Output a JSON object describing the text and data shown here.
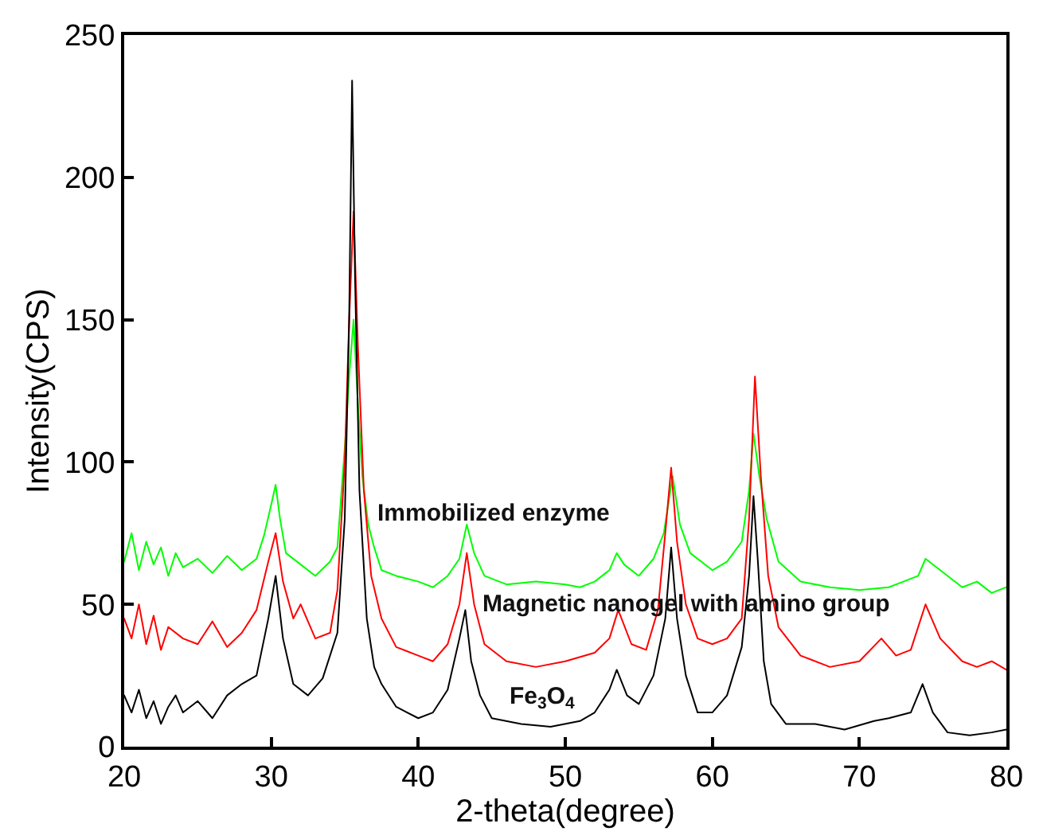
{
  "chart_data": {
    "type": "line",
    "xlabel": "2-theta(degree)",
    "ylabel": "Intensity(CPS)",
    "xlim": [
      20,
      80
    ],
    "ylim": [
      0,
      250
    ],
    "xticks": [
      20,
      30,
      40,
      50,
      60,
      70,
      80
    ],
    "yticks": [
      0,
      50,
      100,
      150,
      200,
      250
    ],
    "grid": false,
    "legend": false,
    "marker": "none",
    "line_style": "solid",
    "series": [
      {
        "name": "Immobilized enzyme",
        "color": "#00ff00",
        "x": [
          20,
          20.5,
          21,
          21.5,
          22,
          22.5,
          23,
          23.5,
          24,
          25,
          26,
          27,
          28,
          29,
          29.5,
          30,
          30.3,
          30.6,
          31,
          32,
          33,
          34,
          34.5,
          35,
          35.3,
          35.6,
          35.9,
          36.2,
          36.6,
          37,
          37.5,
          38.5,
          40,
          41,
          42,
          42.8,
          43.3,
          43.8,
          44.5,
          46,
          48,
          50,
          51,
          52,
          53,
          53.5,
          54,
          55,
          56,
          56.7,
          57.3,
          57.8,
          58.5,
          60,
          61,
          62,
          62.5,
          62.8,
          63.2,
          63.7,
          64.5,
          66,
          68,
          70,
          72,
          73,
          74,
          74.5,
          75.5,
          77,
          78,
          79,
          80
        ],
        "values": [
          65,
          75,
          62,
          72,
          64,
          70,
          60,
          68,
          63,
          66,
          61,
          67,
          62,
          66,
          74,
          85,
          92,
          80,
          68,
          64,
          60,
          65,
          70,
          105,
          130,
          150,
          120,
          95,
          78,
          70,
          62,
          60,
          58,
          56,
          60,
          66,
          78,
          68,
          60,
          57,
          58,
          57,
          56,
          58,
          62,
          68,
          64,
          60,
          66,
          75,
          95,
          78,
          68,
          62,
          65,
          72,
          90,
          110,
          95,
          80,
          65,
          58,
          56,
          55,
          56,
          58,
          60,
          66,
          62,
          56,
          58,
          54,
          56
        ]
      },
      {
        "name": "Magnetic nanogel with amino group",
        "color": "#ff0000",
        "x": [
          20,
          20.5,
          21,
          21.5,
          22,
          22.5,
          23,
          24,
          25,
          26,
          27,
          28,
          29,
          29.8,
          30.3,
          30.8,
          31.5,
          32,
          33,
          34,
          34.5,
          35,
          35.3,
          35.6,
          35.9,
          36.3,
          36.8,
          37.5,
          38.5,
          40,
          41,
          42,
          42.8,
          43.3,
          43.8,
          44.5,
          46,
          48,
          50,
          52,
          53,
          53.6,
          54.5,
          55.5,
          56.3,
          56.8,
          57.2,
          57.6,
          58.2,
          59,
          60,
          61,
          62,
          62.5,
          62.9,
          63.3,
          63.8,
          64.5,
          66,
          68,
          70,
          71.5,
          72.5,
          73.5,
          74.5,
          75.5,
          77,
          78,
          79,
          80
        ],
        "values": [
          45,
          38,
          50,
          36,
          46,
          34,
          42,
          38,
          36,
          44,
          35,
          40,
          48,
          65,
          75,
          58,
          45,
          50,
          38,
          40,
          55,
          100,
          150,
          188,
          140,
          90,
          60,
          45,
          35,
          32,
          30,
          36,
          50,
          68,
          50,
          36,
          30,
          28,
          30,
          33,
          38,
          48,
          36,
          34,
          48,
          75,
          98,
          72,
          50,
          38,
          36,
          38,
          45,
          80,
          130,
          95,
          60,
          42,
          32,
          28,
          30,
          38,
          32,
          34,
          50,
          38,
          30,
          28,
          30,
          27
        ]
      },
      {
        "name": "Fe$_{3}$O$_{4}$",
        "color": "#000000",
        "x": [
          20,
          20.5,
          21,
          21.5,
          22,
          22.5,
          23,
          23.5,
          24,
          25,
          26,
          27,
          28,
          29,
          29.8,
          30.3,
          30.8,
          31.5,
          32.5,
          33.5,
          34.5,
          35,
          35.3,
          35.5,
          35.7,
          36,
          36.5,
          37,
          37.5,
          38.5,
          40,
          41,
          42,
          42.8,
          43.2,
          43.6,
          44.2,
          45,
          47,
          49,
          51,
          52,
          53,
          53.5,
          54.2,
          55,
          56,
          56.8,
          57.2,
          57.6,
          58.2,
          59,
          60,
          61,
          62,
          62.5,
          62.8,
          63.1,
          63.5,
          64,
          65,
          67,
          69,
          71,
          72,
          73.5,
          74.3,
          75,
          76,
          77.5,
          79,
          80
        ],
        "values": [
          18,
          12,
          20,
          10,
          16,
          8,
          14,
          18,
          12,
          16,
          10,
          18,
          22,
          25,
          45,
          60,
          38,
          22,
          18,
          24,
          40,
          80,
          150,
          234,
          165,
          90,
          45,
          28,
          22,
          14,
          10,
          12,
          20,
          38,
          48,
          30,
          18,
          10,
          8,
          7,
          9,
          12,
          20,
          27,
          18,
          15,
          25,
          45,
          70,
          45,
          25,
          12,
          12,
          18,
          35,
          60,
          88,
          65,
          30,
          15,
          8,
          8,
          6,
          9,
          10,
          12,
          22,
          12,
          5,
          4,
          5,
          6
        ]
      }
    ]
  }
}
